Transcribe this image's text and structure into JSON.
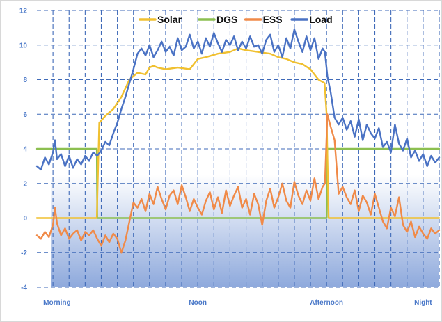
{
  "chart_data": {
    "type": "line",
    "title": "",
    "xlabel": "",
    "ylabel": "",
    "ylim": [
      -4,
      12
    ],
    "xlim": [
      0,
      100
    ],
    "yticks": [
      -4,
      -2,
      0,
      2,
      4,
      6,
      8,
      10,
      12
    ],
    "ytick_labels": [
      "-4",
      "-2",
      "0",
      "2",
      "4",
      "6",
      "8",
      "10",
      "12"
    ],
    "xtick_labels": [
      "Morning",
      "Noon",
      "Afternoon",
      "Night"
    ],
    "xtick_positions": [
      5,
      40,
      72,
      96
    ],
    "grid": true,
    "grid_style": "dashed",
    "legend_position": "top",
    "background_gradient": {
      "top": "#ffffff",
      "bottom": "#7a9ad6",
      "from_y": 2.5
    },
    "series": [
      {
        "name": "Solar",
        "color": "#f0c030",
        "x": [
          0,
          14.9,
          15.5,
          17,
          19,
          21,
          23,
          24,
          25,
          27,
          28,
          29,
          30,
          32,
          35,
          38,
          40,
          42,
          45,
          48,
          50,
          52,
          55,
          58,
          60,
          62,
          64,
          66,
          68,
          70,
          71.5,
          72,
          72.5,
          73,
          75,
          78,
          80,
          85,
          90,
          95,
          100
        ],
        "values": [
          0,
          0,
          5.5,
          5.9,
          6.3,
          7.0,
          8.0,
          8.2,
          8.4,
          8.3,
          8.7,
          8.8,
          8.7,
          8.6,
          8.7,
          8.6,
          9.2,
          9.3,
          9.5,
          9.6,
          9.8,
          9.7,
          9.6,
          9.5,
          9.3,
          9.2,
          9.0,
          8.9,
          8.6,
          8.0,
          7.8,
          6.0,
          0,
          0,
          0,
          0,
          0,
          0,
          0,
          0,
          0
        ]
      },
      {
        "name": "DGS",
        "color": "#8cbf50",
        "x": [
          0,
          14.9,
          15.0,
          72.0,
          72.2,
          100
        ],
        "values": [
          4,
          4,
          0,
          0,
          4,
          4
        ]
      },
      {
        "name": "ESS",
        "color": "#f08a48",
        "x": [
          0,
          1,
          2,
          3,
          4,
          4.5,
          5,
          6,
          7,
          8,
          9,
          10,
          11,
          12,
          13,
          14,
          15,
          16,
          17,
          18,
          19,
          20,
          21,
          22,
          23,
          24,
          25,
          26,
          27,
          28,
          29,
          30,
          31,
          32,
          33,
          34,
          35,
          36,
          37,
          38,
          39,
          40,
          41,
          42,
          43,
          44,
          45,
          46,
          47,
          48,
          49,
          50,
          51,
          52,
          53,
          54,
          55,
          56,
          57,
          58,
          59,
          60,
          61,
          62,
          63,
          64,
          65,
          66,
          67,
          68,
          69,
          70,
          71,
          71.6,
          72.2,
          73,
          74,
          75,
          76,
          77,
          78,
          79,
          80,
          81,
          82,
          83,
          84,
          85,
          86,
          87,
          88,
          89,
          90,
          91,
          92,
          93,
          94,
          95,
          96,
          97,
          98,
          99,
          100
        ],
        "values": [
          -1.0,
          -1.2,
          -0.8,
          -1.1,
          -0.4,
          0.6,
          -0.3,
          -1.0,
          -0.6,
          -1.2,
          -0.9,
          -0.7,
          -1.3,
          -0.8,
          -1.0,
          -0.7,
          -1.2,
          -1.6,
          -1.0,
          -1.4,
          -0.9,
          -1.2,
          -2.0,
          -1.3,
          -0.2,
          0.9,
          0.6,
          1.1,
          0.4,
          1.4,
          0.8,
          1.8,
          1.1,
          0.5,
          1.3,
          1.6,
          0.8,
          1.9,
          1.2,
          0.4,
          1.1,
          0.6,
          0.2,
          1.0,
          1.5,
          0.5,
          1.2,
          0.3,
          1.6,
          0.7,
          1.3,
          1.8,
          0.6,
          1.1,
          0.2,
          1.4,
          0.8,
          -0.4,
          1.0,
          1.7,
          0.6,
          1.2,
          2.0,
          1.0,
          0.6,
          2.1,
          1.3,
          0.8,
          1.6,
          1.0,
          2.3,
          1.1,
          1.8,
          2.0,
          6.0,
          5.3,
          4.5,
          1.4,
          1.8,
          1.2,
          0.8,
          1.6,
          0.4,
          1.3,
          0.9,
          0.2,
          1.4,
          0.6,
          -0.2,
          -0.6,
          0.6,
          0.1,
          1.2,
          -0.4,
          -0.8,
          -0.2,
          -1.1,
          -0.5,
          -0.9,
          -1.2,
          -0.6,
          -0.9,
          -0.7
        ]
      },
      {
        "name": "Load",
        "color": "#4a72c4",
        "x": [
          0,
          1,
          2,
          3,
          4,
          4.5,
          5,
          6,
          7,
          8,
          9,
          10,
          11,
          12,
          13,
          14,
          15,
          16,
          17,
          18,
          19,
          20,
          21,
          22,
          23,
          24,
          25,
          26,
          27,
          28,
          29,
          30,
          31,
          32,
          33,
          34,
          35,
          36,
          37,
          38,
          39,
          40,
          41,
          42,
          43,
          44,
          45,
          46,
          47,
          48,
          49,
          50,
          51,
          52,
          53,
          54,
          55,
          56,
          57,
          58,
          59,
          60,
          61,
          62,
          63,
          64,
          65,
          66,
          67,
          68,
          69,
          70,
          71,
          71.6,
          72.2,
          73,
          74,
          75,
          76,
          77,
          78,
          79,
          80,
          81,
          82,
          83,
          84,
          85,
          86,
          87,
          88,
          89,
          90,
          91,
          92,
          93,
          94,
          95,
          96,
          97,
          98,
          99,
          100
        ],
        "values": [
          3.0,
          2.8,
          3.5,
          3.1,
          3.8,
          4.5,
          3.4,
          3.7,
          3.0,
          3.6,
          2.9,
          3.4,
          3.1,
          3.6,
          3.3,
          3.8,
          3.6,
          3.9,
          4.4,
          4.2,
          4.9,
          5.5,
          6.3,
          7.0,
          7.8,
          8.6,
          9.5,
          9.8,
          9.4,
          10.0,
          9.3,
          9.7,
          10.2,
          9.6,
          9.9,
          9.4,
          10.4,
          9.7,
          9.9,
          10.6,
          9.8,
          10.2,
          9.5,
          10.4,
          9.9,
          10.7,
          10.1,
          9.6,
          10.3,
          10.0,
          10.5,
          9.7,
          10.2,
          9.8,
          10.5,
          9.9,
          10.0,
          9.5,
          10.3,
          10.6,
          9.6,
          10.0,
          9.3,
          10.4,
          9.8,
          10.9,
          10.2,
          9.6,
          10.5,
          9.7,
          10.4,
          9.2,
          9.8,
          9.6,
          8.2,
          7.3,
          5.8,
          5.4,
          5.8,
          5.1,
          5.6,
          4.7,
          5.7,
          4.5,
          5.4,
          4.9,
          4.6,
          5.2,
          4.1,
          4.4,
          3.8,
          5.4,
          4.3,
          3.9,
          4.6,
          3.5,
          3.9,
          3.3,
          3.7,
          3.0,
          3.6,
          3.2,
          3.5
        ]
      }
    ]
  }
}
